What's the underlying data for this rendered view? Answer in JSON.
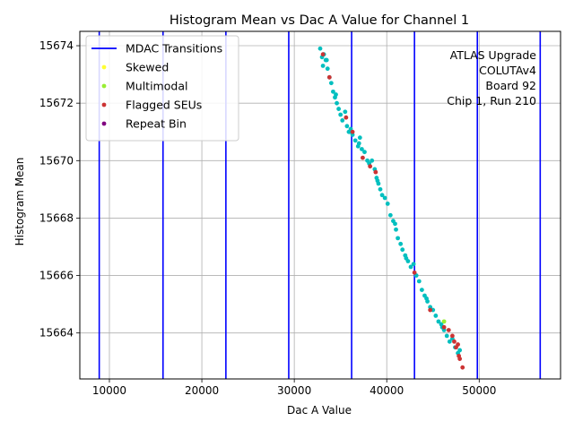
{
  "chart_data": {
    "type": "scatter",
    "title": "Histogram Mean vs Dac A Value for Channel 1",
    "xlabel": "Dac A Value",
    "ylabel": "Histogram Mean",
    "xlim": [
      6800,
      58800
    ],
    "ylim": [
      15662.4,
      15674.5
    ],
    "x_ticks": [
      10000,
      20000,
      30000,
      40000,
      50000
    ],
    "x_tick_labels": [
      "10000",
      "20000",
      "30000",
      "40000",
      "50000"
    ],
    "y_ticks": [
      15664,
      15666,
      15668,
      15670,
      15672,
      15674
    ],
    "y_tick_labels": [
      "15664",
      "15666",
      "15668",
      "15670",
      "15672",
      "15674"
    ],
    "grid": true,
    "legend_position": "top-left",
    "legend": [
      {
        "label": "MDAC Transitions",
        "kind": "line",
        "color": "#0000ff"
      },
      {
        "label": "Skewed",
        "kind": "point",
        "color": "#ffff33"
      },
      {
        "label": "Multimodal",
        "kind": "point",
        "color": "#99ee33"
      },
      {
        "label": "Flagged SEUs",
        "kind": "point",
        "color": "#cc3333"
      },
      {
        "label": "Repeat Bin",
        "kind": "point",
        "color": "#800080"
      }
    ],
    "annotation": [
      "ATLAS Upgrade",
      "COLUTAv4",
      "Board 92",
      "Chip 1, Run 210"
    ],
    "mdac_transitions": [
      8900,
      15800,
      22600,
      29400,
      36200,
      43000,
      49800,
      56600
    ],
    "series": [
      {
        "color": "#00bfbf",
        "points": [
          [
            32800,
            15673.9
          ],
          [
            33000,
            15673.6
          ],
          [
            33200,
            15673.7
          ],
          [
            33100,
            15673.3
          ],
          [
            33400,
            15673.5
          ],
          [
            33600,
            15673.2
          ],
          [
            33800,
            15672.9
          ],
          [
            34000,
            15672.7
          ],
          [
            34200,
            15672.4
          ],
          [
            34400,
            15672.2
          ],
          [
            34600,
            15672.0
          ],
          [
            34800,
            15671.8
          ],
          [
            35000,
            15671.6
          ],
          [
            35200,
            15671.4
          ],
          [
            35500,
            15671.7
          ],
          [
            35700,
            15671.2
          ],
          [
            35900,
            15671.0
          ],
          [
            36100,
            15671.1
          ],
          [
            36300,
            15670.9
          ],
          [
            36600,
            15670.7
          ],
          [
            36900,
            15670.5
          ],
          [
            37100,
            15670.8
          ],
          [
            37300,
            15670.4
          ],
          [
            37600,
            15670.3
          ],
          [
            37900,
            15670.0
          ],
          [
            38100,
            15669.9
          ],
          [
            38400,
            15670.0
          ],
          [
            38700,
            15669.7
          ],
          [
            38900,
            15669.4
          ],
          [
            39100,
            15669.2
          ],
          [
            39300,
            15669.0
          ],
          [
            39500,
            15668.8
          ],
          [
            39800,
            15668.7
          ],
          [
            40100,
            15668.5
          ],
          [
            40400,
            15668.1
          ],
          [
            40700,
            15667.9
          ],
          [
            41000,
            15667.6
          ],
          [
            41200,
            15667.3
          ],
          [
            41500,
            15667.1
          ],
          [
            41700,
            15666.9
          ],
          [
            42000,
            15666.7
          ],
          [
            42300,
            15666.5
          ],
          [
            42600,
            15666.3
          ],
          [
            42900,
            15666.4
          ],
          [
            43200,
            15666.0
          ],
          [
            43500,
            15665.8
          ],
          [
            43800,
            15665.5
          ],
          [
            44100,
            15665.3
          ],
          [
            44400,
            15665.1
          ],
          [
            44700,
            15664.9
          ],
          [
            45000,
            15664.8
          ],
          [
            45300,
            15664.6
          ],
          [
            45600,
            15664.4
          ],
          [
            45900,
            15664.3
          ],
          [
            46200,
            15664.1
          ],
          [
            46500,
            15663.9
          ],
          [
            46800,
            15663.7
          ],
          [
            47100,
            15663.8
          ],
          [
            47400,
            15663.5
          ],
          [
            47700,
            15663.3
          ],
          [
            33500,
            15673.5
          ],
          [
            34500,
            15672.3
          ],
          [
            36000,
            15671.0
          ],
          [
            37000,
            15670.6
          ],
          [
            39000,
            15669.3
          ],
          [
            40900,
            15667.8
          ],
          [
            42100,
            15666.6
          ],
          [
            44300,
            15665.2
          ],
          [
            46000,
            15664.2
          ],
          [
            47900,
            15663.4
          ]
        ]
      },
      {
        "color": "#cc3333",
        "points": [
          [
            33100,
            15673.7
          ],
          [
            33800,
            15672.9
          ],
          [
            35600,
            15671.5
          ],
          [
            36300,
            15671.0
          ],
          [
            37400,
            15670.1
          ],
          [
            38200,
            15669.8
          ],
          [
            38800,
            15669.6
          ],
          [
            43000,
            15666.1
          ],
          [
            44700,
            15664.8
          ],
          [
            46200,
            15664.2
          ],
          [
            46700,
            15664.1
          ],
          [
            47100,
            15663.9
          ],
          [
            47300,
            15663.7
          ],
          [
            47500,
            15663.5
          ],
          [
            47700,
            15663.6
          ],
          [
            47800,
            15663.2
          ],
          [
            47900,
            15663.1
          ],
          [
            48200,
            15662.8
          ]
        ]
      },
      {
        "color": "#99ee33",
        "points": [
          [
            46200,
            15664.4
          ]
        ]
      },
      {
        "color": "#800080",
        "points": []
      }
    ]
  }
}
